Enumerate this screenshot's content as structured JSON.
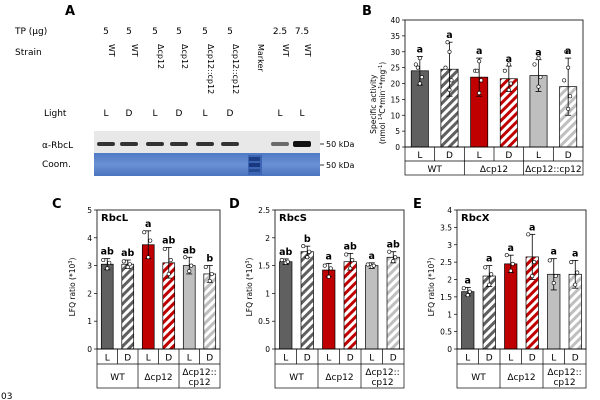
{
  "panel_a": {
    "label": "A",
    "tp_label": "TP  (μg)",
    "tp_values": [
      "5",
      "5",
      "5",
      "5",
      "5",
      "5",
      "",
      "2.5",
      "7.5"
    ],
    "strain_label": "Strain",
    "strains": [
      "WT",
      "WT",
      "Δcp12",
      "Δcp12",
      "Δcp12::cp12",
      "Δcp12::cp12",
      "Marker",
      "WT",
      "WT"
    ],
    "light_label": "Light",
    "light_values": [
      "L",
      "D",
      "L",
      "D",
      "L",
      "D",
      "",
      "L",
      "L"
    ],
    "blot_label": "α-RbcL",
    "blot_kda": "50 kDa",
    "coom_label": "Coom.",
    "coom_kda": "50 kDa"
  },
  "chart_data": [
    {
      "panel": "B",
      "type": "bar",
      "title": "",
      "ylabel": "Specific activity (nmol 14C*min-1*mg-1)",
      "ylabel_parts": [
        "Specific activity",
        "(nmol ",
        "14",
        "C*min",
        "-1",
        "*mg",
        "-1",
        ")"
      ],
      "ylim": [
        0,
        40
      ],
      "yticks": [
        "0",
        "5",
        "10",
        "15",
        "20",
        "25",
        "30",
        "35",
        "40"
      ],
      "categories": [
        "L",
        "D",
        "L",
        "D",
        "L",
        "D"
      ],
      "groups": [
        "WT",
        "Δcp12",
        "Δcp12::cp12"
      ],
      "values": [
        24,
        24.5,
        22,
        21.5,
        22.5,
        19
      ],
      "errors": [
        4.5,
        8.5,
        6,
        4,
        5,
        9
      ],
      "letters": [
        "a",
        "a",
        "a",
        "a",
        "a",
        "a"
      ],
      "points": [
        [
          20,
          22,
          26,
          28,
          25
        ],
        [
          18,
          21,
          25,
          30,
          33
        ],
        [
          17,
          21,
          24,
          27,
          24
        ],
        [
          18,
          20,
          24,
          26
        ],
        [
          19,
          22,
          26,
          28
        ],
        [
          12,
          16,
          21,
          25,
          30
        ]
      ]
    },
    {
      "panel": "C",
      "type": "bar",
      "title": "RbcL",
      "ylabel": "LFQ ratio (*10^3)",
      "ylim": [
        0,
        5
      ],
      "yticks": [
        "0",
        "1",
        "2",
        "3",
        "4",
        "5"
      ],
      "categories": [
        "L",
        "D",
        "L",
        "D",
        "L",
        "D"
      ],
      "groups": [
        "WT",
        "Δcp12",
        "Δcp12:: cp12"
      ],
      "values": [
        3.05,
        3.05,
        3.75,
        3.1,
        3.0,
        2.7
      ],
      "errors": [
        0.2,
        0.15,
        0.5,
        0.55,
        0.3,
        0.3
      ],
      "letters": [
        "ab",
        "ab",
        "a",
        "ab",
        "ab",
        "b"
      ],
      "points": [
        [
          2.9,
          3.1,
          3.2
        ],
        [
          2.95,
          3.05,
          3.15
        ],
        [
          3.3,
          3.9,
          4.2
        ],
        [
          2.7,
          3.2,
          3.6
        ],
        [
          2.8,
          3.0,
          3.3
        ],
        [
          2.45,
          2.7,
          2.95
        ]
      ]
    },
    {
      "panel": "D",
      "type": "bar",
      "title": "RbcS",
      "ylabel": "LFQ ratio (*10^3)",
      "ylim": [
        0,
        2.5
      ],
      "yticks": [
        "0",
        "0.5",
        "1",
        "1.5",
        "2",
        "2.5"
      ],
      "categories": [
        "L",
        "D",
        "L",
        "D",
        "L",
        "D"
      ],
      "groups": [
        "WT",
        "Δcp12",
        "Δcp12:: cp12"
      ],
      "values": [
        1.57,
        1.75,
        1.42,
        1.57,
        1.5,
        1.65
      ],
      "errors": [
        0.05,
        0.1,
        0.12,
        0.15,
        0.05,
        0.1
      ],
      "letters": [
        "ab",
        "b",
        "a",
        "ab",
        "a",
        "ab"
      ],
      "points": [
        [
          1.55,
          1.57,
          1.6
        ],
        [
          1.65,
          1.75,
          1.85
        ],
        [
          1.3,
          1.45,
          1.5
        ],
        [
          1.45,
          1.6,
          1.7
        ],
        [
          1.48,
          1.5,
          1.52
        ],
        [
          1.58,
          1.65,
          1.75
        ]
      ]
    },
    {
      "panel": "E",
      "type": "bar",
      "title": "RbcX",
      "ylabel": "LFQ ratio (*10^3)",
      "ylim": [
        0,
        4
      ],
      "yticks": [
        "0",
        "0.5",
        "1",
        "1.5",
        "2",
        "2.5",
        "3",
        "3.5",
        "4"
      ],
      "categories": [
        "L",
        "D",
        "L",
        "D",
        "L",
        "D"
      ],
      "groups": [
        "WT",
        "Δcp12",
        "Δcp12:: cp12"
      ],
      "values": [
        1.65,
        2.1,
        2.45,
        2.65,
        2.15,
        2.15
      ],
      "errors": [
        0.12,
        0.3,
        0.25,
        0.65,
        0.45,
        0.4
      ],
      "letters": [
        "a",
        "a",
        "a",
        "a",
        "a",
        "a"
      ],
      "points": [
        [
          1.55,
          1.65,
          1.75
        ],
        [
          1.85,
          2.15,
          2.35
        ],
        [
          2.25,
          2.45,
          2.7
        ],
        [
          2.1,
          2.5,
          3.3
        ],
        [
          1.9,
          2.1,
          2.55
        ],
        [
          1.85,
          2.2,
          2.5
        ]
      ]
    }
  ],
  "footer": {
    "page_number": "03"
  },
  "colors": {
    "wt": "#606060",
    "cp12": "#c00000",
    "comp": "#bfbfbf"
  }
}
